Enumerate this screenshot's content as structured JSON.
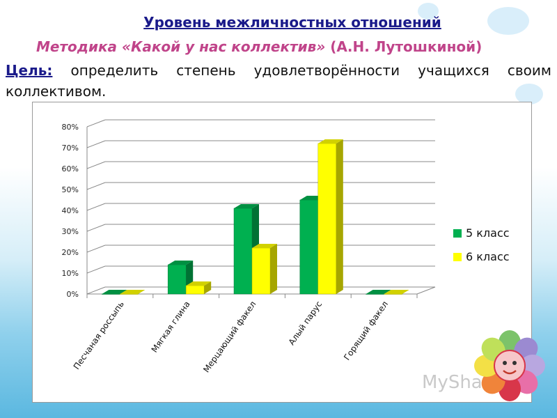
{
  "slide": {
    "title": "Уровень межличностных отношений",
    "method_label": "Методика «Какой у нас коллектив»",
    "method_author": "(А.Н. Лутошкиной)",
    "goal_label": "Цель:",
    "goal_text": " определить степень удовлетворённости учащихся своим коллективом."
  },
  "watermark": {
    "text": "MyShared"
  },
  "colors": {
    "series_5": "#00b050",
    "series_6": "#ffff00",
    "axis": "#888888",
    "grid": "#888888"
  },
  "chart_data": {
    "type": "bar",
    "title": "",
    "xlabel": "",
    "ylabel": "",
    "ylim": [
      0,
      80
    ],
    "y_ticks": [
      "0%",
      "10%",
      "20%",
      "30%",
      "40%",
      "50%",
      "60%",
      "70%",
      "80%"
    ],
    "categories": [
      "Песчаная россыпь",
      "Мягкая глина",
      "Мерцающий факел",
      "Алый парус",
      "Горящий факел"
    ],
    "series": [
      {
        "name": "5 класс",
        "values": [
          0,
          14,
          41,
          45,
          0
        ]
      },
      {
        "name": "6 класс",
        "values": [
          0,
          4,
          22,
          72,
          0
        ]
      }
    ],
    "legend_position": "right",
    "grid": true,
    "style": "3d-column"
  }
}
